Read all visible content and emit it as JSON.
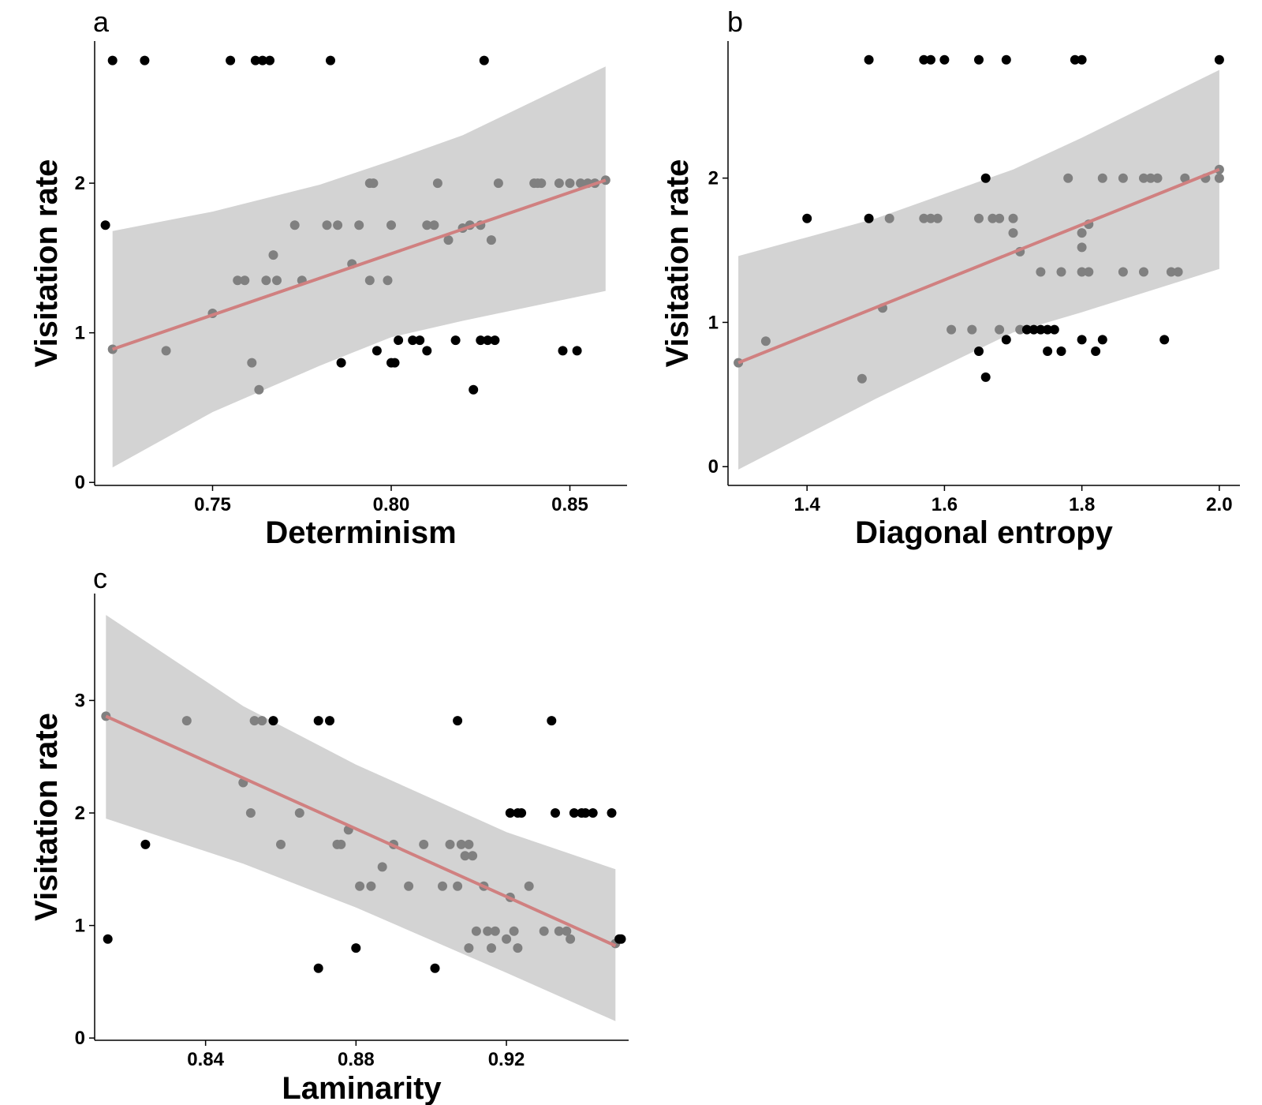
{
  "colors": {
    "ribbon": "#d3d3d3",
    "fit_line": "#d08080",
    "point_inside": "#808080",
    "point_outside": "#000000",
    "axis": "#000000"
  },
  "chart_data": [
    {
      "type": "scatter",
      "panel_label": "a",
      "xlabel": "Determinism",
      "ylabel": "Visitation rate",
      "xlim": [
        0.717,
        0.866
      ],
      "ylim": [
        -0.02,
        2.95
      ],
      "xticks": [
        0.75,
        0.8,
        0.85
      ],
      "xtick_labels": [
        "0.75",
        "0.80",
        "0.85"
      ],
      "yticks": [
        0,
        1,
        2
      ],
      "ytick_labels": [
        "0",
        "1",
        "2"
      ],
      "grid": false,
      "fit": {
        "x": [
          0.722,
          0.75,
          0.78,
          0.8,
          0.82,
          0.86
        ],
        "y": [
          0.89,
          1.13,
          1.38,
          1.52,
          1.7,
          2.02
        ],
        "lower": [
          0.1,
          0.47,
          0.78,
          0.97,
          1.08,
          1.28
        ],
        "upper": [
          1.68,
          1.81,
          1.99,
          2.15,
          2.32,
          2.78
        ]
      },
      "points": [
        [
          0.722,
          2.82
        ],
        [
          0.731,
          2.82
        ],
        [
          0.755,
          2.82
        ],
        [
          0.762,
          2.82
        ],
        [
          0.764,
          2.82
        ],
        [
          0.766,
          2.82
        ],
        [
          0.783,
          2.82
        ],
        [
          0.826,
          2.82
        ],
        [
          0.72,
          1.72
        ],
        [
          0.722,
          0.89
        ],
        [
          0.737,
          0.88
        ],
        [
          0.75,
          1.13
        ],
        [
          0.757,
          1.35
        ],
        [
          0.759,
          1.35
        ],
        [
          0.761,
          0.8
        ],
        [
          0.763,
          0.62
        ],
        [
          0.765,
          1.35
        ],
        [
          0.767,
          1.52
        ],
        [
          0.768,
          1.35
        ],
        [
          0.773,
          1.72
        ],
        [
          0.775,
          1.35
        ],
        [
          0.782,
          1.72
        ],
        [
          0.785,
          1.72
        ],
        [
          0.786,
          0.8
        ],
        [
          0.789,
          1.46
        ],
        [
          0.791,
          1.72
        ],
        [
          0.794,
          2.0
        ],
        [
          0.795,
          2.0
        ],
        [
          0.794,
          1.35
        ],
        [
          0.796,
          0.88
        ],
        [
          0.799,
          1.35
        ],
        [
          0.8,
          1.72
        ],
        [
          0.8,
          0.8
        ],
        [
          0.801,
          0.8
        ],
        [
          0.802,
          0.95
        ],
        [
          0.806,
          0.95
        ],
        [
          0.808,
          0.95
        ],
        [
          0.81,
          1.72
        ],
        [
          0.81,
          0.88
        ],
        [
          0.812,
          1.72
        ],
        [
          0.813,
          2.0
        ],
        [
          0.816,
          1.62
        ],
        [
          0.818,
          0.95
        ],
        [
          0.82,
          1.7
        ],
        [
          0.822,
          1.72
        ],
        [
          0.823,
          0.62
        ],
        [
          0.825,
          1.72
        ],
        [
          0.825,
          0.95
        ],
        [
          0.827,
          0.95
        ],
        [
          0.828,
          1.62
        ],
        [
          0.829,
          0.95
        ],
        [
          0.83,
          2.0
        ],
        [
          0.84,
          2.0
        ],
        [
          0.841,
          2.0
        ],
        [
          0.842,
          2.0
        ],
        [
          0.847,
          2.0
        ],
        [
          0.848,
          0.88
        ],
        [
          0.85,
          2.0
        ],
        [
          0.852,
          0.88
        ],
        [
          0.853,
          2.0
        ],
        [
          0.855,
          2.0
        ],
        [
          0.857,
          2.0
        ],
        [
          0.86,
          2.02
        ]
      ]
    },
    {
      "type": "scatter",
      "panel_label": "b",
      "xlabel": "Diagonal entropy",
      "ylabel": "Visitation rate",
      "xlim": [
        1.285,
        2.03
      ],
      "ylim": [
        -0.13,
        2.95
      ],
      "xticks": [
        1.4,
        1.6,
        1.8,
        2.0
      ],
      "xtick_labels": [
        "1.4",
        "1.6",
        "1.8",
        "2.0"
      ],
      "yticks": [
        0,
        1,
        2
      ],
      "ytick_labels": [
        "0",
        "1",
        "2"
      ],
      "grid": false,
      "fit": {
        "x": [
          1.3,
          1.5,
          1.7,
          1.8,
          2.0
        ],
        "y": [
          0.72,
          1.1,
          1.49,
          1.68,
          2.06
        ],
        "lower": [
          -0.02,
          0.47,
          0.93,
          1.07,
          1.37
        ],
        "upper": [
          1.46,
          1.72,
          2.06,
          2.28,
          2.75
        ]
      },
      "points": [
        [
          1.49,
          2.82
        ],
        [
          1.57,
          2.82
        ],
        [
          1.58,
          2.82
        ],
        [
          1.6,
          2.82
        ],
        [
          1.65,
          2.82
        ],
        [
          1.69,
          2.82
        ],
        [
          1.79,
          2.82
        ],
        [
          1.8,
          2.82
        ],
        [
          2.0,
          2.82
        ],
        [
          1.3,
          0.72
        ],
        [
          1.34,
          0.87
        ],
        [
          1.4,
          1.72
        ],
        [
          1.48,
          0.61
        ],
        [
          1.49,
          1.72
        ],
        [
          1.51,
          1.1
        ],
        [
          1.52,
          1.72
        ],
        [
          1.57,
          1.72
        ],
        [
          1.58,
          1.72
        ],
        [
          1.59,
          1.72
        ],
        [
          1.61,
          0.95
        ],
        [
          1.64,
          0.95
        ],
        [
          1.65,
          1.72
        ],
        [
          1.65,
          0.8
        ],
        [
          1.66,
          2.0
        ],
        [
          1.66,
          0.62
        ],
        [
          1.67,
          1.72
        ],
        [
          1.68,
          1.72
        ],
        [
          1.68,
          0.95
        ],
        [
          1.69,
          0.88
        ],
        [
          1.7,
          1.72
        ],
        [
          1.7,
          1.62
        ],
        [
          1.71,
          1.49
        ],
        [
          1.71,
          0.95
        ],
        [
          1.72,
          0.95
        ],
        [
          1.73,
          0.95
        ],
        [
          1.74,
          0.95
        ],
        [
          1.74,
          1.35
        ],
        [
          1.75,
          0.95
        ],
        [
          1.75,
          0.8
        ],
        [
          1.76,
          0.95
        ],
        [
          1.77,
          0.8
        ],
        [
          1.77,
          1.35
        ],
        [
          1.78,
          2.0
        ],
        [
          1.8,
          1.52
        ],
        [
          1.8,
          1.62
        ],
        [
          1.8,
          1.35
        ],
        [
          1.8,
          0.88
        ],
        [
          1.81,
          1.35
        ],
        [
          1.81,
          1.68
        ],
        [
          1.82,
          0.8
        ],
        [
          1.83,
          0.88
        ],
        [
          1.83,
          2.0
        ],
        [
          1.86,
          2.0
        ],
        [
          1.86,
          1.35
        ],
        [
          1.89,
          2.0
        ],
        [
          1.89,
          1.35
        ],
        [
          1.9,
          2.0
        ],
        [
          1.91,
          2.0
        ],
        [
          1.92,
          0.88
        ],
        [
          1.93,
          1.35
        ],
        [
          1.94,
          1.35
        ],
        [
          1.95,
          2.0
        ],
        [
          1.98,
          2.0
        ],
        [
          2.0,
          2.0
        ],
        [
          2.0,
          2.06
        ]
      ]
    },
    {
      "type": "scatter",
      "panel_label": "c",
      "xlabel": "Laminarity",
      "ylabel": "Visitation rate",
      "xlim": [
        0.8105,
        0.9525
      ],
      "ylim": [
        -0.02,
        3.95
      ],
      "xticks": [
        0.84,
        0.88,
        0.92
      ],
      "xtick_labels": [
        "0.84",
        "0.88",
        "0.92"
      ],
      "yticks": [
        0,
        1,
        2,
        3
      ],
      "ytick_labels": [
        "0",
        "1",
        "2",
        "3"
      ],
      "grid": false,
      "fit": {
        "x": [
          0.8135,
          0.85,
          0.88,
          0.92,
          0.949
        ],
        "y": [
          2.86,
          2.25,
          1.78,
          1.21,
          0.82
        ],
        "lower": [
          1.95,
          1.55,
          1.16,
          0.58,
          0.15
        ],
        "upper": [
          3.76,
          2.95,
          2.43,
          1.83,
          1.5
        ]
      },
      "points": [
        [
          0.8135,
          2.86
        ],
        [
          0.814,
          0.88
        ],
        [
          0.824,
          1.72
        ],
        [
          0.835,
          2.82
        ],
        [
          0.853,
          2.82
        ],
        [
          0.855,
          2.82
        ],
        [
          0.858,
          2.82
        ],
        [
          0.87,
          2.82
        ],
        [
          0.873,
          2.82
        ],
        [
          0.907,
          2.82
        ],
        [
          0.932,
          2.82
        ],
        [
          0.85,
          2.27
        ],
        [
          0.852,
          2.0
        ],
        [
          0.86,
          1.72
        ],
        [
          0.865,
          2.0
        ],
        [
          0.87,
          0.62
        ],
        [
          0.875,
          1.72
        ],
        [
          0.876,
          1.72
        ],
        [
          0.878,
          1.85
        ],
        [
          0.88,
          0.8
        ],
        [
          0.881,
          1.35
        ],
        [
          0.884,
          1.35
        ],
        [
          0.887,
          1.52
        ],
        [
          0.89,
          1.72
        ],
        [
          0.894,
          1.35
        ],
        [
          0.898,
          1.72
        ],
        [
          0.901,
          0.62
        ],
        [
          0.903,
          1.35
        ],
        [
          0.905,
          1.72
        ],
        [
          0.907,
          1.35
        ],
        [
          0.908,
          1.72
        ],
        [
          0.909,
          1.62
        ],
        [
          0.91,
          1.72
        ],
        [
          0.911,
          1.62
        ],
        [
          0.91,
          0.8
        ],
        [
          0.912,
          0.95
        ],
        [
          0.914,
          1.35
        ],
        [
          0.915,
          0.95
        ],
        [
          0.916,
          0.8
        ],
        [
          0.917,
          0.95
        ],
        [
          0.92,
          0.88
        ],
        [
          0.921,
          1.25
        ],
        [
          0.921,
          2.0
        ],
        [
          0.922,
          0.95
        ],
        [
          0.923,
          0.8
        ],
        [
          0.923,
          2.0
        ],
        [
          0.924,
          2.0
        ],
        [
          0.926,
          1.35
        ],
        [
          0.93,
          0.95
        ],
        [
          0.933,
          2.0
        ],
        [
          0.934,
          0.95
        ],
        [
          0.936,
          0.95
        ],
        [
          0.937,
          0.88
        ],
        [
          0.938,
          2.0
        ],
        [
          0.94,
          2.0
        ],
        [
          0.941,
          2.0
        ],
        [
          0.943,
          2.0
        ],
        [
          0.948,
          2.0
        ],
        [
          0.949,
          0.84
        ],
        [
          0.95,
          0.88
        ],
        [
          0.9505,
          0.88
        ]
      ]
    }
  ]
}
